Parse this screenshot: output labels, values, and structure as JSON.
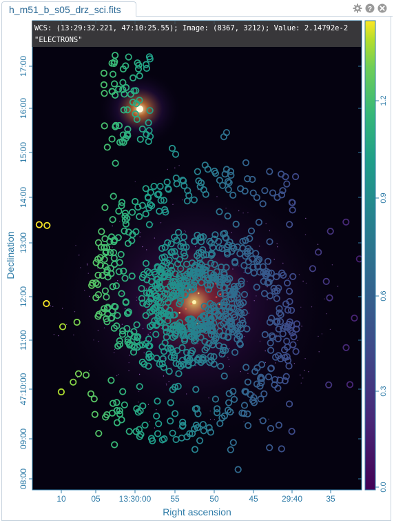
{
  "tab": {
    "title": "h_m51_b_s05_drz_sci.fits"
  },
  "toolbar": {
    "icons": [
      "gear-icon",
      "help-icon",
      "close-icon"
    ]
  },
  "coordinate_readout": {
    "text": "WCS: (13:29:32.221, 47:10:25.55); Image: (8367, 3212); Value: 2.14792e-2 \"ELECTRONS\""
  },
  "axes": {
    "x_label": "Right ascension",
    "y_label": "Declination",
    "x_ticks": [
      "10",
      "05",
      "13:30:00",
      "55",
      "50",
      "45",
      "29:40",
      "35"
    ],
    "y_ticks": [
      "17:00",
      "16:00",
      "15:00",
      "14:00",
      "13:00",
      "12:00",
      "11:00",
      "47:10:00",
      "09:00",
      "08:00"
    ]
  },
  "colorbar": {
    "ticks": [
      "1.2",
      "0.9",
      "0.6",
      "0.3",
      "0.0"
    ],
    "colormap": "viridis",
    "range": [
      0.0,
      1.35
    ]
  },
  "image": {
    "source": "M51 Whirlpool Galaxy",
    "colormap": "inferno",
    "overlay": "region markers (circles) colored by value"
  },
  "colors": {
    "accent": "#2f7ca8",
    "panel_border": "#c7d3de",
    "image_background": "#050210"
  }
}
